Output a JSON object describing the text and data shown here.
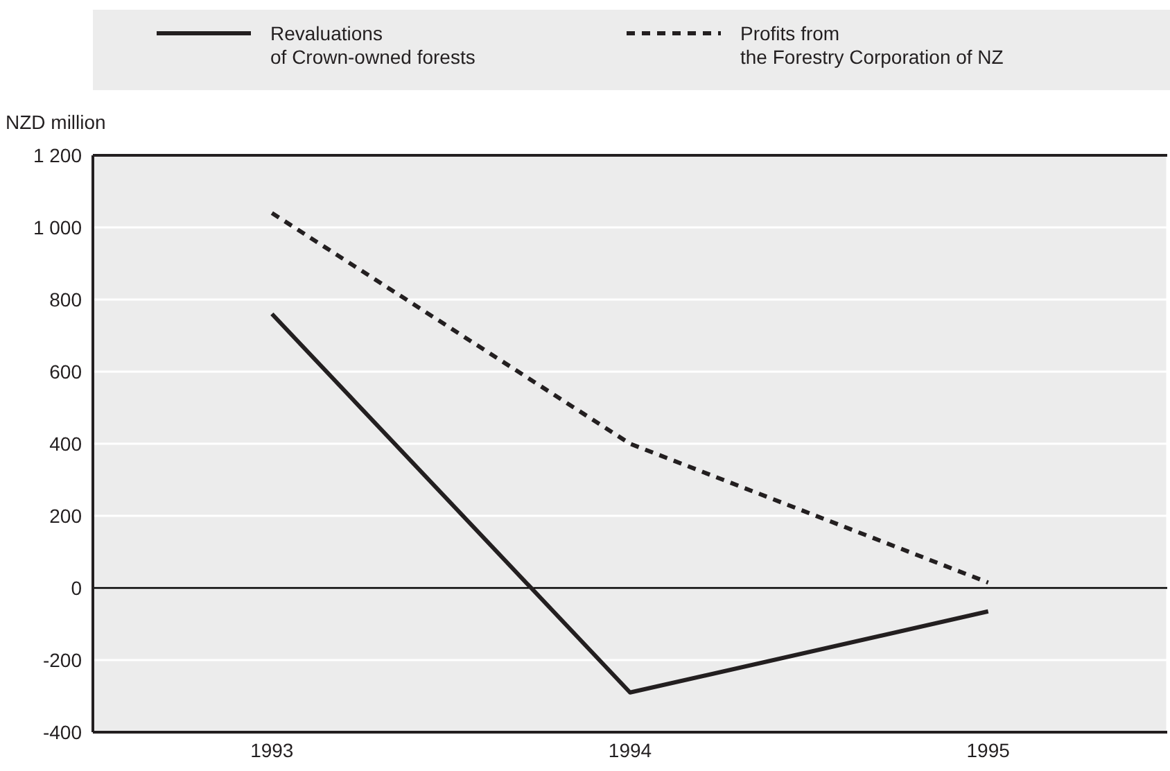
{
  "chart_data": {
    "type": "line",
    "ylabel": "NZD million",
    "categories": [
      "1993",
      "1994",
      "1995"
    ],
    "series": [
      {
        "name": "Revaluations\nof Crown-owned forests",
        "color": "#231f20",
        "values": [
          760,
          -290,
          -65
        ],
        "line_style": "solid"
      },
      {
        "name": "Profits from\nthe Forestry Corporation of NZ",
        "color": "#231f20",
        "values": [
          1040,
          400,
          15
        ],
        "line_style": "dashed"
      }
    ],
    "ylim": [
      -400,
      1200
    ],
    "yticks": [
      -400,
      -200,
      0,
      200,
      400,
      600,
      800,
      {
        "value": 1000,
        "label": "1 000"
      },
      {
        "value": 1200,
        "label": "1 200"
      }
    ],
    "ref_lines": [
      {
        "axis": "y",
        "value": 0,
        "color": "#000000"
      }
    ],
    "grid": true,
    "legend": "top",
    "marker": "none"
  }
}
